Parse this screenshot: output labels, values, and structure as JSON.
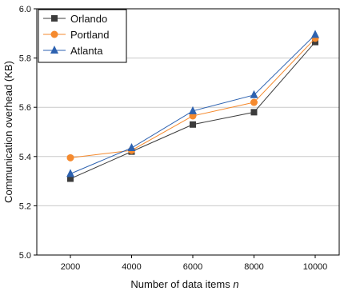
{
  "chart_data": {
    "type": "line",
    "title": "",
    "xlabel": "Number of data items",
    "xlabel_var": "n",
    "ylabel": "Communication overhead (KB)",
    "x": [
      2000,
      4000,
      6000,
      8000,
      10000
    ],
    "x_tick_labels": [
      "2000",
      "4000",
      "6000",
      "8000",
      "10000"
    ],
    "y_ticks": [
      5.0,
      5.2,
      5.4,
      5.6,
      5.8,
      6.0
    ],
    "y_tick_labels": [
      "5.0",
      "5.2",
      "5.4",
      "5.6",
      "5.8",
      "6.0"
    ],
    "ylim": [
      5.0,
      6.0
    ],
    "grid": "horizontal",
    "legend_position": "top-left",
    "series": [
      {
        "name": "Orlando",
        "values": [
          5.31,
          5.42,
          5.53,
          5.58,
          5.865
        ],
        "color": "#3c3c3c",
        "marker": "square"
      },
      {
        "name": "Portland",
        "values": [
          5.395,
          5.425,
          5.565,
          5.62,
          5.88
        ],
        "color": "#f58a2e",
        "marker": "circle"
      },
      {
        "name": "Atlanta",
        "values": [
          5.33,
          5.435,
          5.585,
          5.65,
          5.895
        ],
        "color": "#2d62b0",
        "marker": "triangle"
      }
    ]
  }
}
